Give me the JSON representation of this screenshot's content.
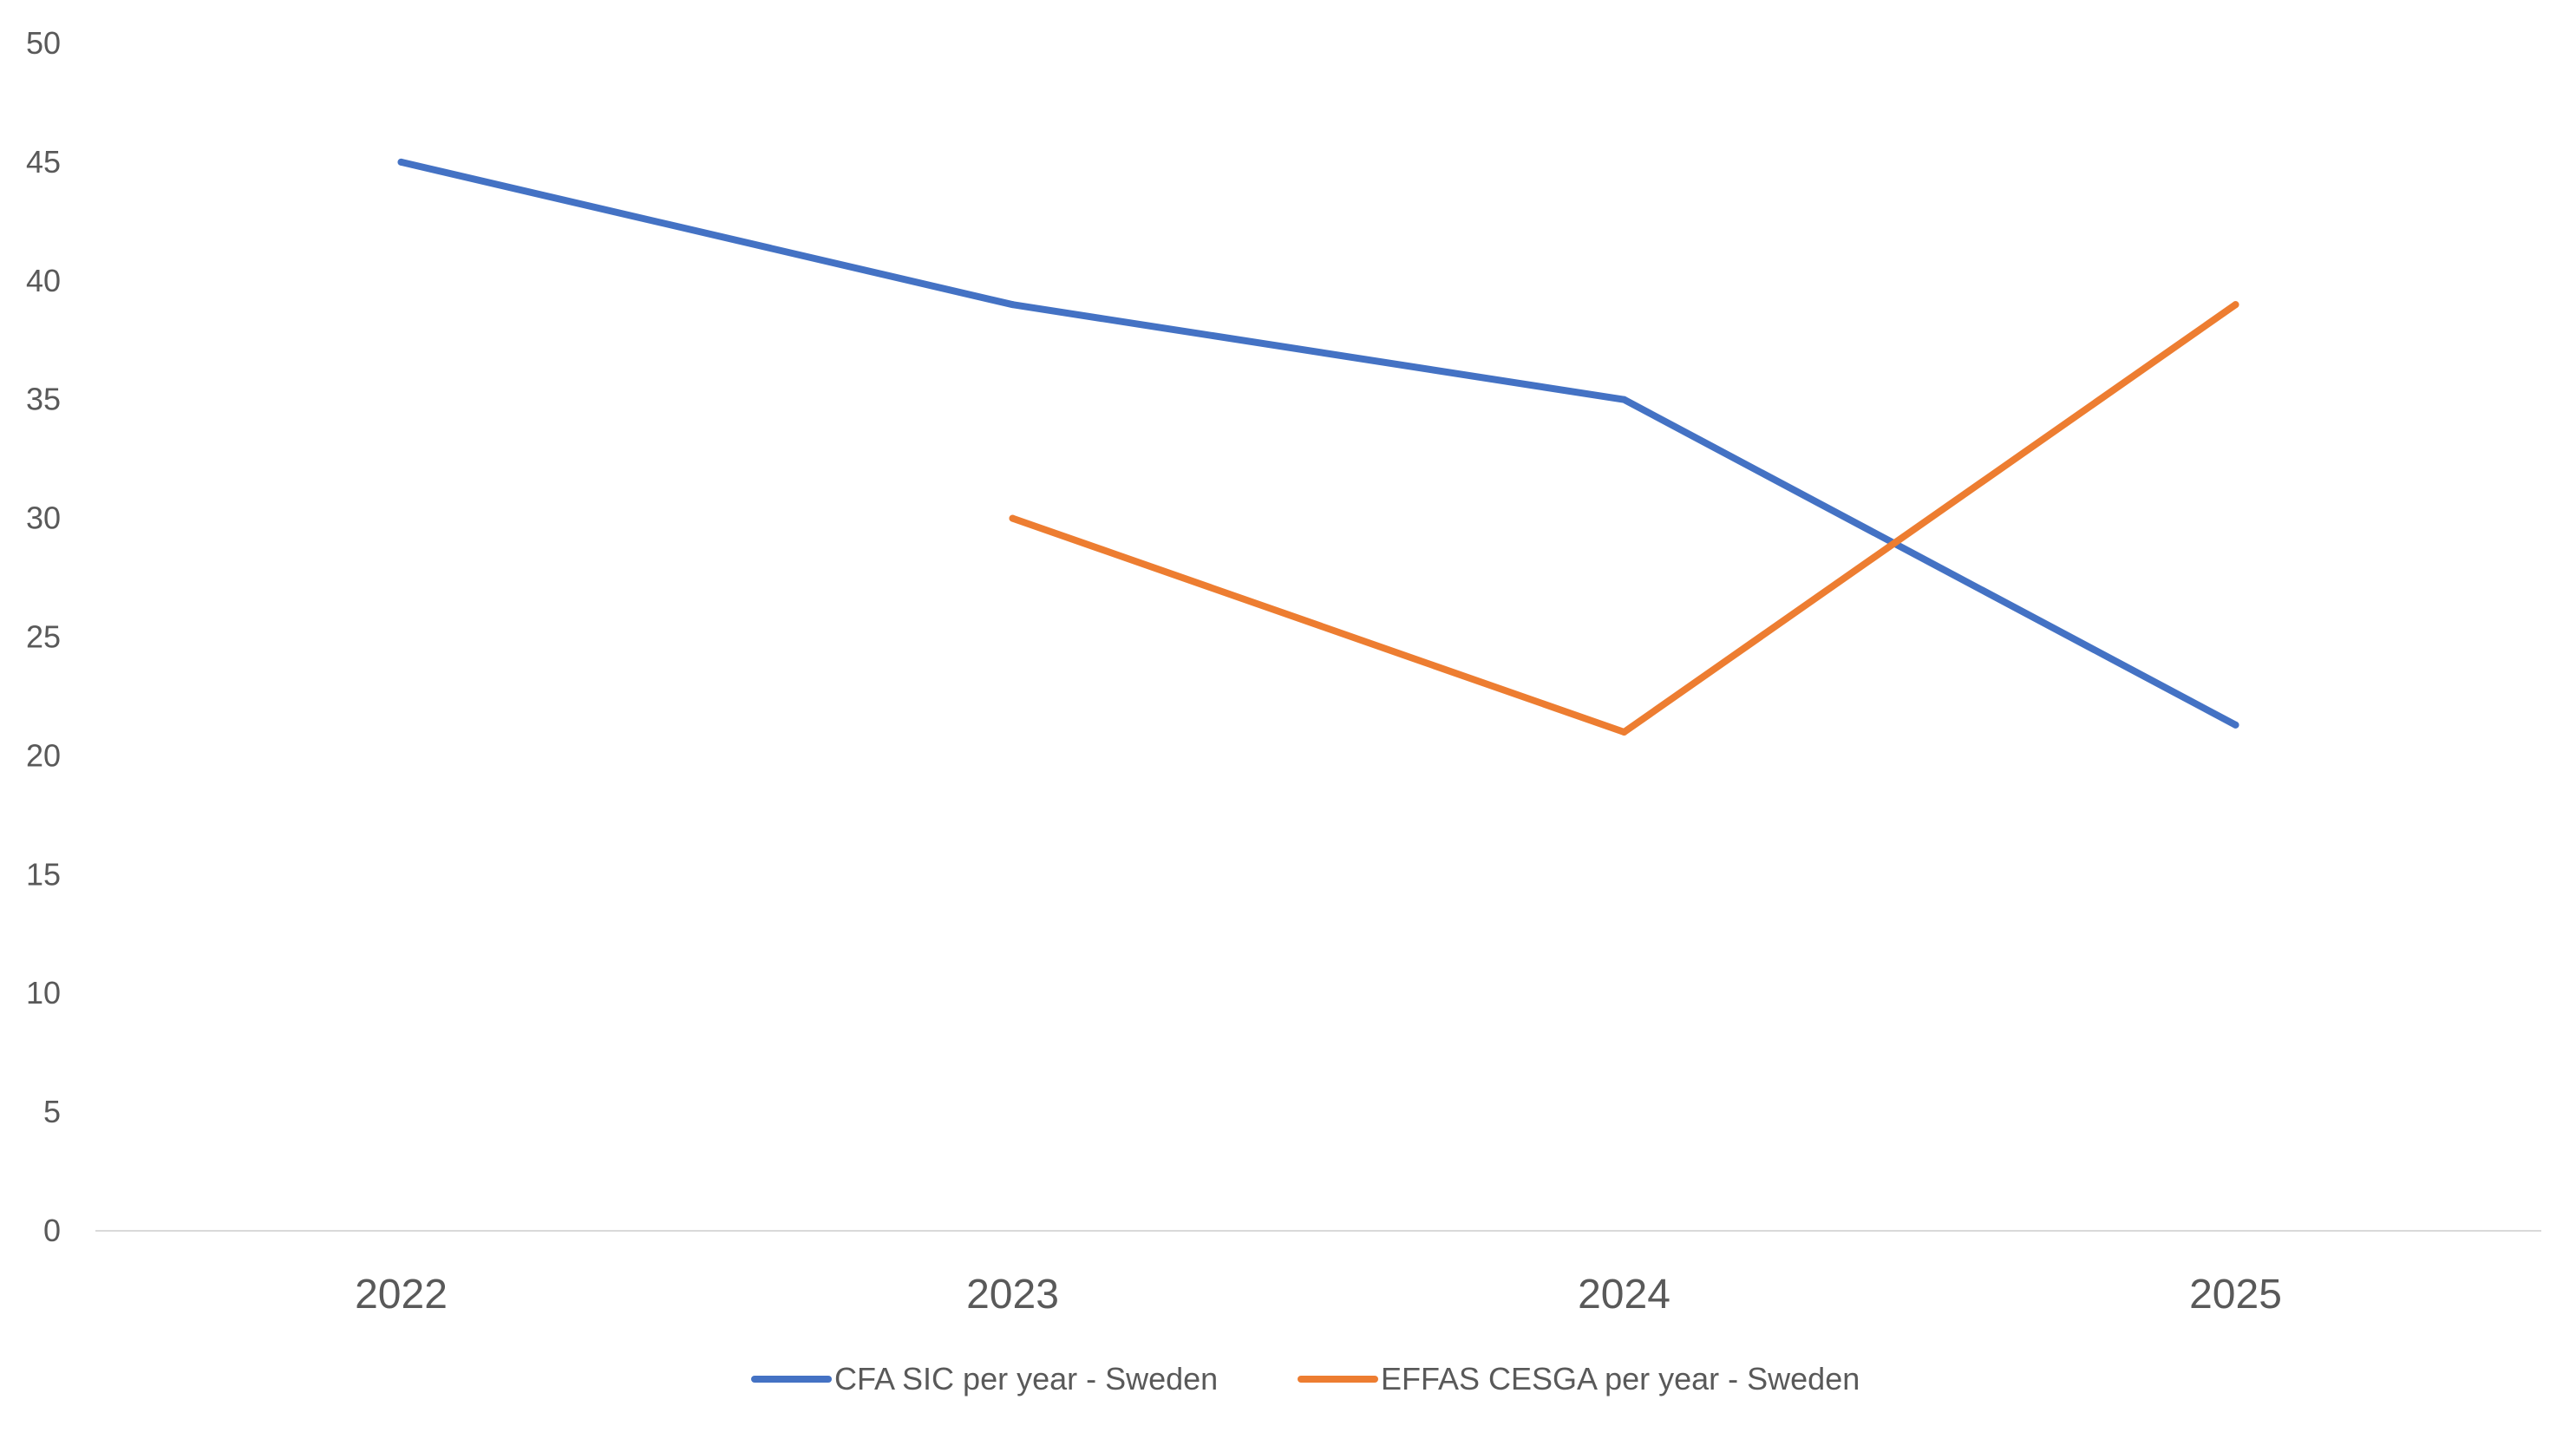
{
  "chart_data": {
    "type": "line",
    "title": "",
    "xlabel": "",
    "ylabel": "",
    "categories": [
      "2022",
      "2023",
      "2024",
      "2025"
    ],
    "ylim": [
      0,
      50
    ],
    "y_ticks": [
      "0",
      "5",
      "10",
      "15",
      "20",
      "25",
      "30",
      "35",
      "40",
      "45",
      "50"
    ],
    "grid": false,
    "legend_position": "bottom",
    "series": [
      {
        "name": "CFA SIC per year - Sweden",
        "color": "#4472C4",
        "values": [
          45,
          39,
          35,
          21.3
        ]
      },
      {
        "name": "EFFAS CESGA per year - Sweden",
        "color": "#ED7D31",
        "values": [
          null,
          30,
          21,
          39
        ]
      }
    ]
  }
}
